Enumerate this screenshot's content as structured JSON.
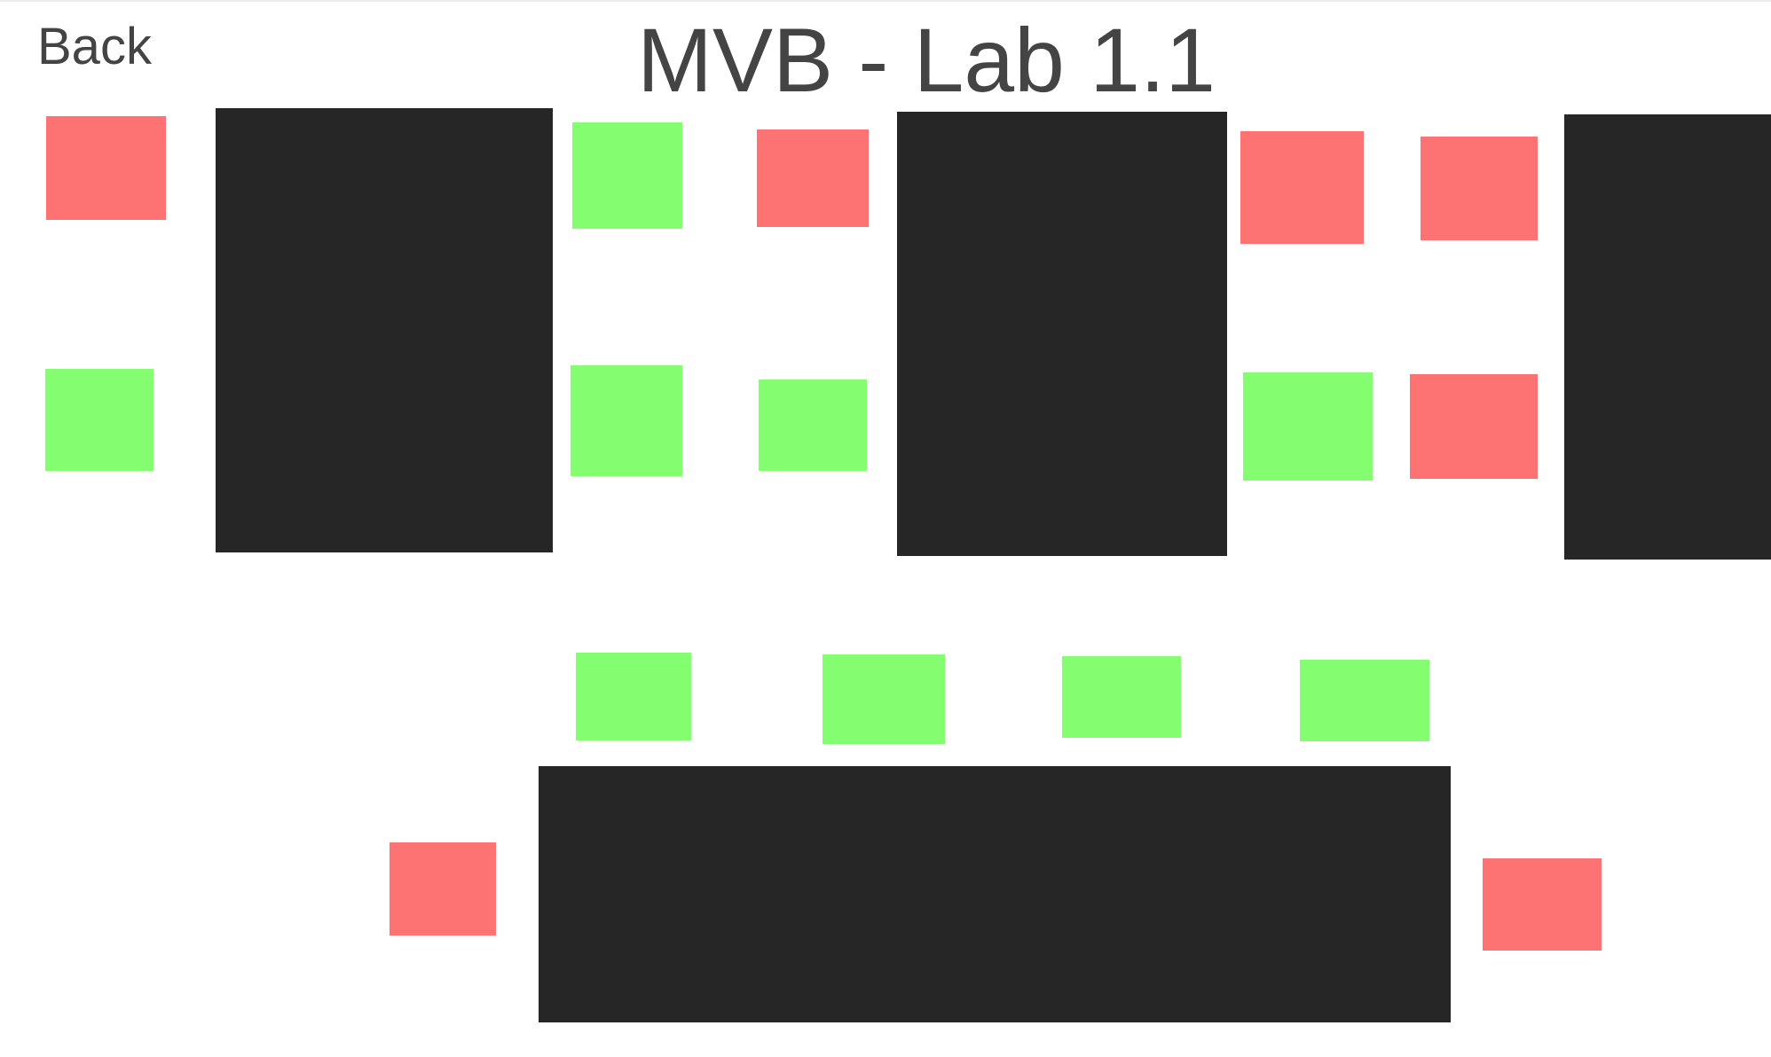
{
  "header": {
    "back_label": "Back",
    "title": "MVB - Lab 1.1"
  },
  "colors": {
    "available": "#84fd71",
    "occupied": "#fd7272",
    "table": "#262626",
    "text": "#444444"
  },
  "legend_semantics": {
    "free": "seat-green",
    "taken": "seat-red"
  }
}
